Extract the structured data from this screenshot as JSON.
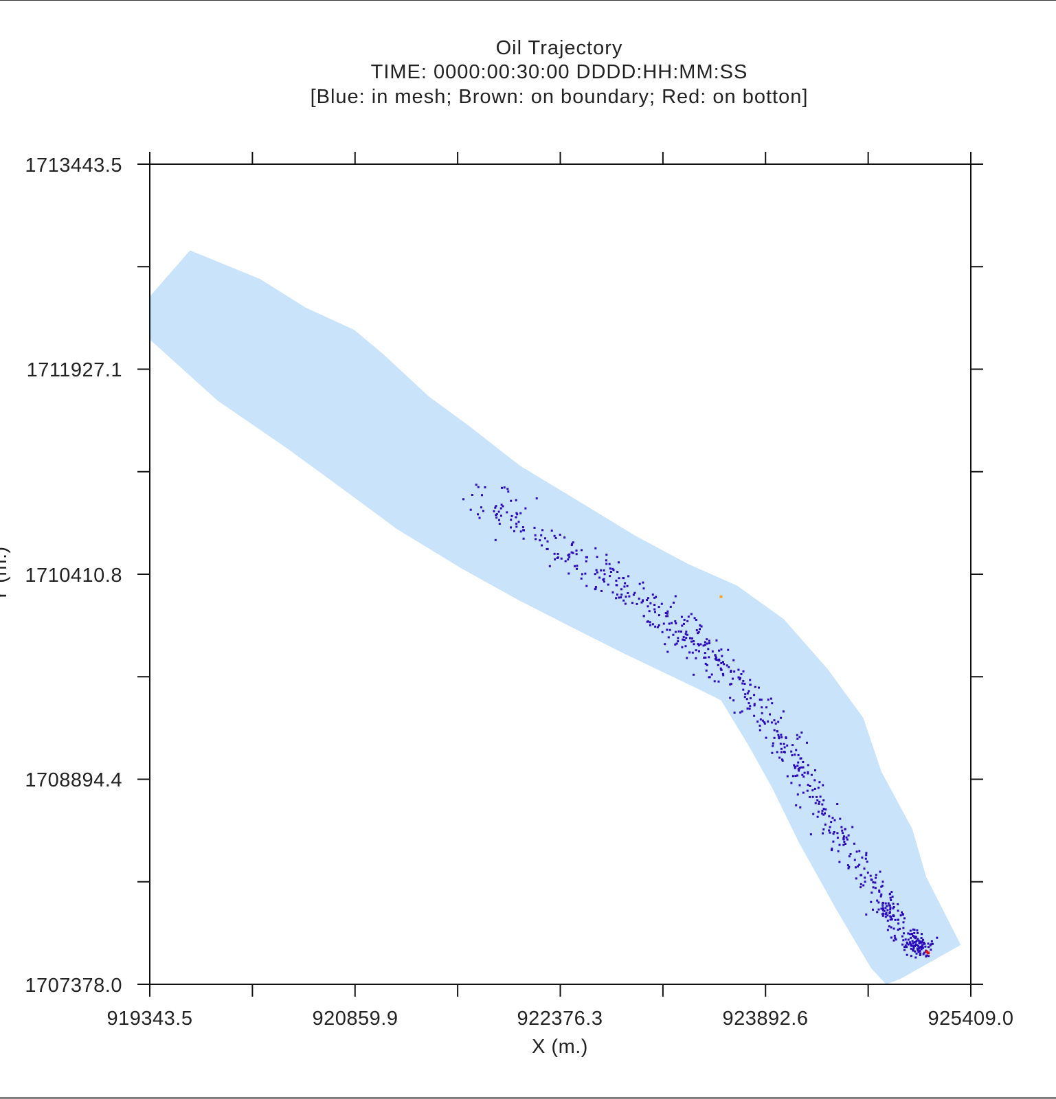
{
  "chart_data": {
    "type": "scatter",
    "title": "Oil Trajectory",
    "subtitle": "TIME: 0000:00:30:00 DDDD:HH:MM:SS",
    "legend_note": "[Blue: in mesh;  Brown: on boundary; Red: on botton]",
    "xlabel": "X (m.)",
    "ylabel": "Y (m.)",
    "xlim": [
      919343.5,
      925409.0
    ],
    "ylim": [
      1707378.0,
      1713443.5
    ],
    "x_ticks": [
      "919343.5",
      "920859.9",
      "922376.3",
      "923892.6",
      "925409.0"
    ],
    "y_ticks": [
      "1713443.5",
      "1711927.1",
      "1710410.8",
      "1708894.4",
      "1707378.0"
    ],
    "grid": false,
    "colors": {
      "mesh": "#c9e3fa",
      "in_mesh": "#2a0ab8",
      "on_boundary": "#f5a623",
      "on_bottom": "#e01010",
      "axes": "#111111"
    },
    "domain_polygon": [
      [
        919343.5,
        1712464
      ],
      [
        919641,
        1712806
      ],
      [
        920160,
        1712593
      ],
      [
        920494,
        1712383
      ],
      [
        920855,
        1712217
      ],
      [
        921069,
        1712038
      ],
      [
        921403,
        1711727
      ],
      [
        921706,
        1711504
      ],
      [
        922078,
        1711214
      ],
      [
        922465,
        1710979
      ],
      [
        922933,
        1710694
      ],
      [
        923320,
        1710487
      ],
      [
        923684,
        1710326
      ],
      [
        924028,
        1710078
      ],
      [
        924353,
        1709707
      ],
      [
        924614,
        1709349
      ],
      [
        924749,
        1708949
      ],
      [
        924977,
        1708526
      ],
      [
        925079,
        1708173
      ],
      [
        925335,
        1707669
      ],
      [
        924889,
        1707418
      ],
      [
        924783,
        1707378
      ],
      [
        924672,
        1707498
      ],
      [
        924417,
        1707928
      ],
      [
        924142,
        1708421
      ],
      [
        923944,
        1708826
      ],
      [
        923765,
        1709148
      ],
      [
        923564,
        1709478
      ],
      [
        923381,
        1709569
      ],
      [
        922843,
        1709826
      ],
      [
        922460,
        1710019
      ],
      [
        922078,
        1710214
      ],
      [
        921646,
        1710454
      ],
      [
        921171,
        1710744
      ],
      [
        920766,
        1711043
      ],
      [
        920356,
        1711343
      ],
      [
        919845,
        1711694
      ],
      [
        919343.5,
        1712147
      ]
    ],
    "particle_region": {
      "x": [
        921681,
        925120
      ],
      "y": [
        1707500,
        1711050
      ],
      "count": 720,
      "distribution": "along channel centerline from upstream edge to outlet"
    },
    "boundary_particles": [
      [
        923564,
        1710244
      ]
    ],
    "bottom_particles": [
      [
        925083,
        1707620
      ],
      [
        925095,
        1707610
      ]
    ]
  }
}
